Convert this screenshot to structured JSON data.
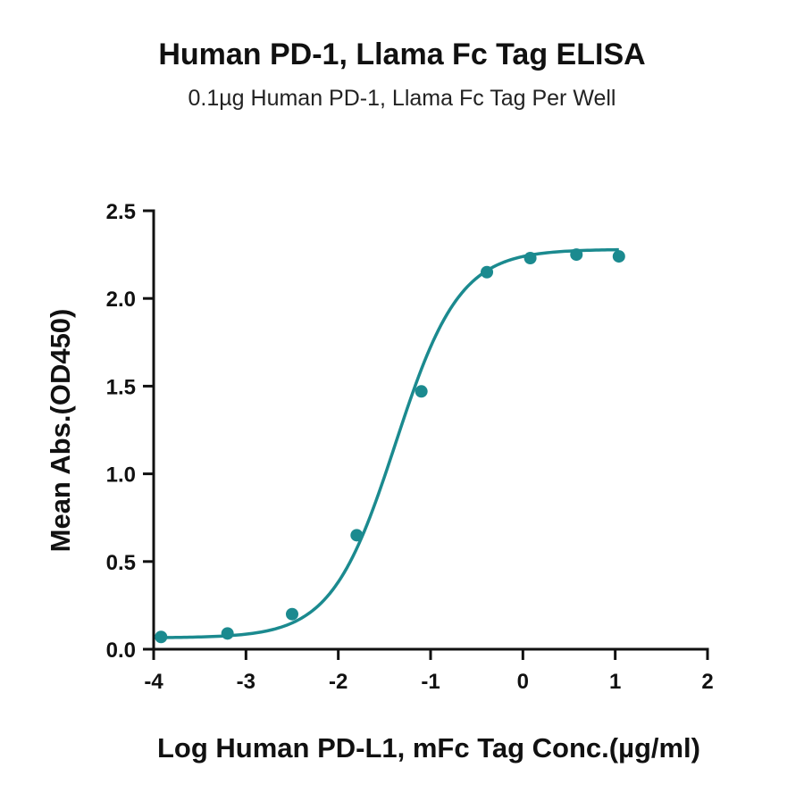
{
  "chart_data": {
    "type": "scatter",
    "title": "Human PD-1, Llama Fc Tag ELISA",
    "subtitle": "0.1µg Human PD-1, Llama Fc Tag Per Well",
    "xlabel": "Log Human PD-L1, mFc Tag Conc.(µg/ml)",
    "ylabel": "Mean Abs.(OD450)",
    "xlim": [
      -4,
      2
    ],
    "ylim": [
      0,
      2.5
    ],
    "x_ticks": [
      "-4",
      "-3",
      "-2",
      "-1",
      "0",
      "1",
      "2"
    ],
    "y_ticks": [
      "0.0",
      "0.5",
      "1.0",
      "1.5",
      "2.0",
      "2.5"
    ],
    "grid": false,
    "color": "#1b8a8f",
    "series": [
      {
        "x": [
          -3.92,
          -3.2,
          -2.5,
          -1.8,
          -1.1,
          -0.39,
          0.08,
          0.58,
          1.04
        ],
        "y": [
          0.07,
          0.09,
          0.2,
          0.65,
          1.47,
          2.15,
          2.23,
          2.25,
          2.24
        ]
      }
    ],
    "fit": {
      "model": "4PL",
      "bottom": 0.065,
      "top": 2.28,
      "logEC50": -1.38,
      "hillslope": 1.25
    }
  }
}
